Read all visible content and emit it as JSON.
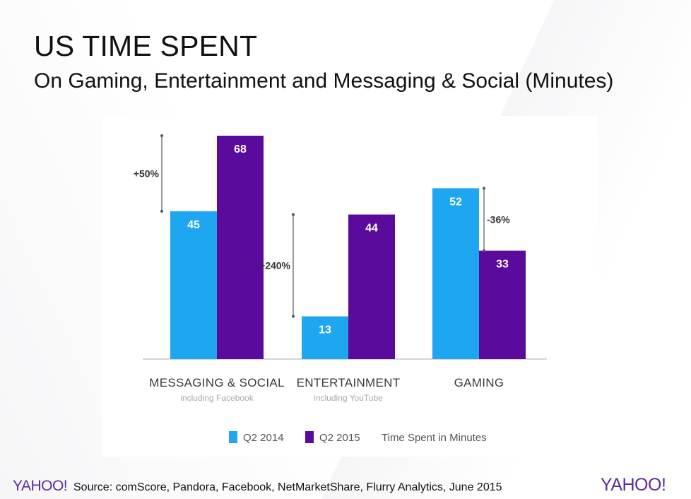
{
  "slide": {
    "title": "US TIME SPENT",
    "subtitle": "On Gaming, Entertainment and Messaging & Social (Minutes)",
    "source": "Source: comScore, Pandora, Facebook, NetMarketShare, Flurry Analytics, June 2015",
    "logo_left": "YAHOO!",
    "logo_right": "YAHOO!"
  },
  "colors": {
    "q2_2014": "#1ea7f0",
    "q2_2015": "#5b0b9c",
    "axis": "#c9c9c9",
    "label": "#3a3a3a",
    "sublabel": "#a8a8a8",
    "bar_text": "#ffffff"
  },
  "chart_data": {
    "type": "bar",
    "title": "",
    "xlabel": "",
    "ylabel": "",
    "ylim": [
      0,
      68
    ],
    "categories": [
      {
        "name": "MESSAGING & SOCIAL",
        "note": "including Facebook",
        "change": "+50%",
        "change_side": "left"
      },
      {
        "name": "ENTERTAINMENT",
        "note": "including YouTube",
        "change": "+240%",
        "change_side": "left"
      },
      {
        "name": "GAMING",
        "note": "",
        "change": "-36%",
        "change_side": "right"
      }
    ],
    "series": [
      {
        "name": "Q2 2014",
        "values": [
          45,
          13,
          52
        ]
      },
      {
        "name": "Q2 2015",
        "values": [
          68,
          44,
          33
        ]
      }
    ],
    "legend": {
      "position": "bottom",
      "unit_label": "Time Spent in Minutes"
    }
  }
}
